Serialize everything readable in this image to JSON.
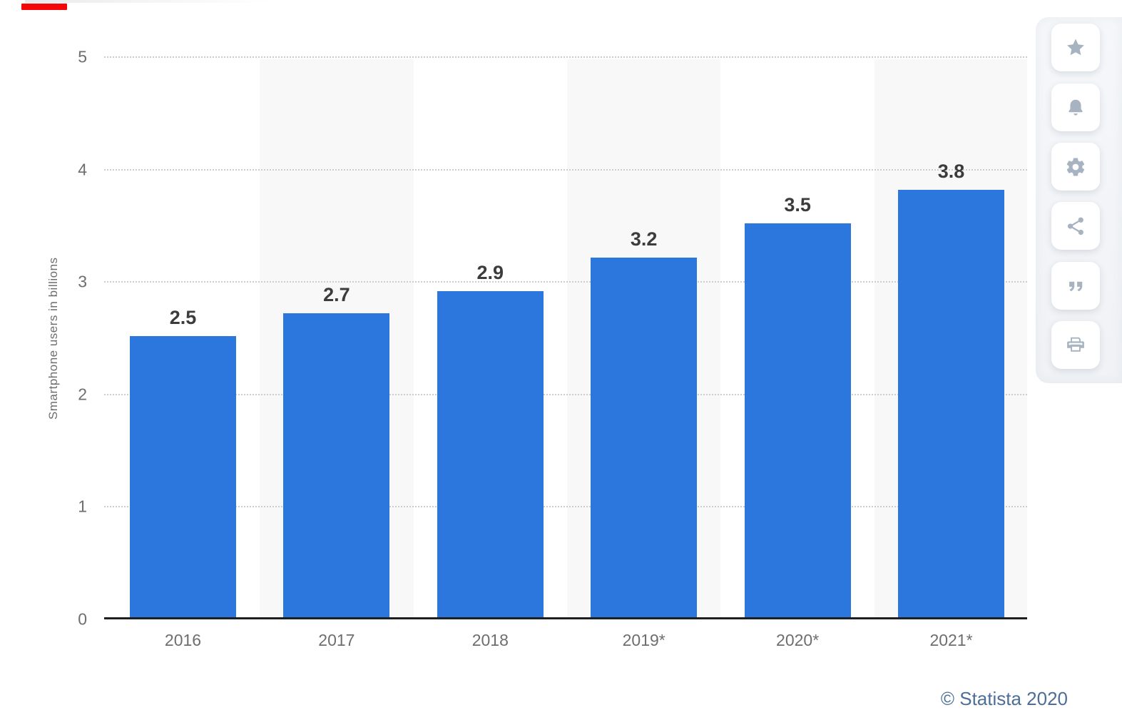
{
  "chart_data": {
    "type": "bar",
    "title": "",
    "xlabel": "",
    "ylabel": "Smartphone users in billions",
    "categories": [
      "2016",
      "2017",
      "2018",
      "2019*",
      "2020*",
      "2021*"
    ],
    "values": [
      2.5,
      2.7,
      2.9,
      3.2,
      3.5,
      3.8
    ],
    "value_labels": [
      "2.5",
      "2.7",
      "2.9",
      "3.2",
      "3.5",
      "3.8"
    ],
    "ylim": [
      0,
      5
    ],
    "yticks": [
      0,
      1,
      2,
      3,
      4,
      5
    ],
    "grid": "horizontal dotted",
    "legend_position": "none",
    "bar_color": "#2c77dd",
    "shaded_column_color": "#f8f8f8",
    "shaded_columns": [
      1,
      3,
      5
    ],
    "tick_label_color": "#6e6e6e",
    "value_label_color": "#3c3c3c"
  },
  "loading_bar": {
    "color": "#f50708"
  },
  "toolbar": {
    "icon_color": "#a7b3c1",
    "buttons": [
      {
        "name": "favorite-star-button",
        "icon": "star-icon"
      },
      {
        "name": "notifications-bell-button",
        "icon": "bell-icon"
      },
      {
        "name": "settings-gear-button",
        "icon": "gear-icon"
      },
      {
        "name": "share-button",
        "icon": "share-icon"
      },
      {
        "name": "citation-quote-button",
        "icon": "quote-icon"
      },
      {
        "name": "print-button",
        "icon": "printer-icon"
      }
    ]
  },
  "credit": {
    "text": "© Statista 2020",
    "color": "#4d6f97"
  }
}
